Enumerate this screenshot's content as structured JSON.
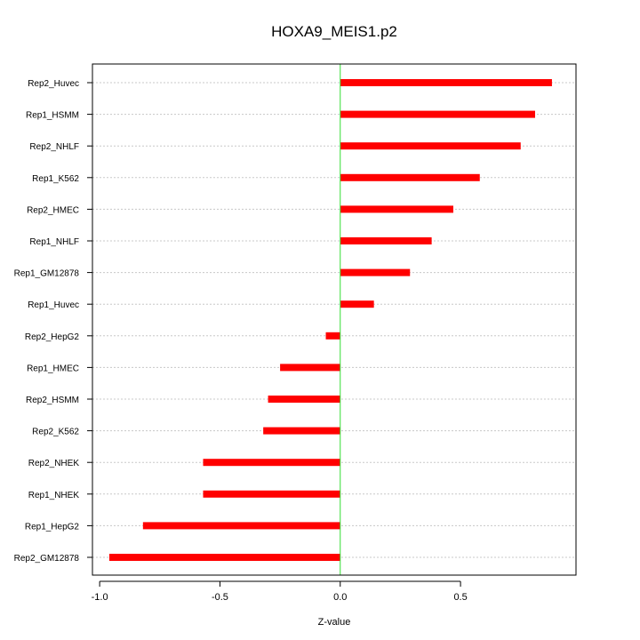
{
  "chart_data": {
    "type": "bar",
    "orientation": "horizontal",
    "title": "HOXA9_MEIS1.p2",
    "xlabel": "Z-value",
    "ylabel": "",
    "xlim": [
      -1.03,
      0.98
    ],
    "xticks": [
      -1.0,
      -0.5,
      0.0,
      0.5
    ],
    "xtick_labels": [
      "-1.0",
      "-0.5",
      "0.0",
      "0.5"
    ],
    "grid": true,
    "reference_line": 0,
    "colors": {
      "bar": "#ff0000",
      "reference_line": "#33dd33",
      "grid": "#c8c8c8"
    },
    "categories": [
      "Rep2_Huvec",
      "Rep1_HSMM",
      "Rep2_NHLF",
      "Rep1_K562",
      "Rep2_HMEC",
      "Rep1_NHLF",
      "Rep1_GM12878",
      "Rep1_Huvec",
      "Rep2_HepG2",
      "Rep1_HMEC",
      "Rep2_HSMM",
      "Rep2_K562",
      "Rep2_NHEK",
      "Rep1_NHEK",
      "Rep1_HepG2",
      "Rep2_GM12878"
    ],
    "values": [
      0.88,
      0.81,
      0.75,
      0.58,
      0.47,
      0.38,
      0.29,
      0.14,
      -0.06,
      -0.25,
      -0.3,
      -0.32,
      -0.57,
      -0.57,
      -0.82,
      -0.96
    ]
  }
}
